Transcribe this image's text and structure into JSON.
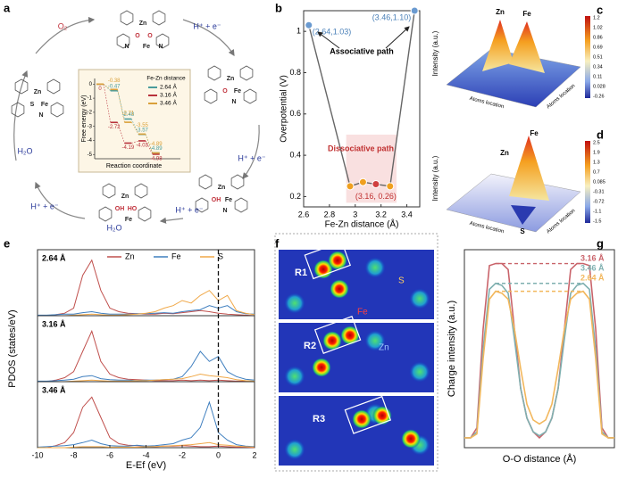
{
  "panel_labels": [
    "a",
    "b",
    "c",
    "d",
    "e",
    "f",
    "g"
  ],
  "panel_a": {
    "reagents": [
      "O₂",
      "H⁺ + e⁻",
      "H⁺ + e⁻",
      "H⁺ + e⁻",
      "H₂O",
      "H⁺ + e⁻",
      "H₂O"
    ],
    "structures": [
      [
        "Zn",
        "O",
        "O",
        "Fe",
        "N",
        "N"
      ],
      [
        "Zn",
        "O",
        "Fe",
        "N"
      ],
      [
        "Zn",
        "OH",
        "Fe",
        "N"
      ],
      [
        "Zn",
        "OH",
        "HO",
        "Fe"
      ],
      [
        "Zn",
        "S",
        "Fe",
        "N"
      ]
    ]
  },
  "panel_c": {
    "zlabel": "Intensity (a.u.)",
    "axis_labels": [
      "Atoms location",
      "Atoms location"
    ],
    "peaks": [
      "Zn",
      "Fe"
    ],
    "colorbar_labels": [
      "1.2",
      "1.02",
      "0.86",
      "0.69",
      "0.51",
      "0.34",
      "0.11",
      "0.028",
      "-0.26"
    ]
  },
  "panel_d": {
    "zlabel": "Intensity (a.u.)",
    "axis_labels": [
      "Atoms location",
      "Atoms location"
    ],
    "peaks": [
      "Zn",
      "Fe",
      "S"
    ],
    "colorbar_labels": [
      "2.5",
      "1.9",
      "1.3",
      "0.7",
      "0.085",
      "-0.31",
      "-0.72",
      "-1.1",
      "-1.5"
    ]
  },
  "panel_e": {
    "ylabel": "PDOS (states/eV)"
  },
  "panel_f": {
    "regions": [
      "R1",
      "R2",
      "R3"
    ],
    "atoms": [
      "S",
      "Fe",
      "Zn"
    ]
  },
  "chart_data": [
    {
      "type": "step",
      "xlabel": "Reaction coordinate",
      "ylabel": "Free energy (eV)",
      "legend_title": "Fe-Zn distance",
      "ylim": [
        -5.3,
        0.4
      ],
      "yticks": [
        0,
        -1,
        -2,
        -3,
        -4,
        -5
      ],
      "series": [
        {
          "name": "2.64 Å",
          "color": "#4a9c9c",
          "values": [
            0,
            -0.47,
            -2.48,
            -3.57,
            -4.89
          ]
        },
        {
          "name": "3.16 Å",
          "color": "#b8323c",
          "values": [
            0,
            -2.72,
            -4.19,
            -4.03,
            -4.98
          ]
        },
        {
          "name": "3.46 Å",
          "color": "#d9a03a",
          "values": [
            0,
            -0.38,
            -2.71,
            -3.55,
            -4.89
          ]
        }
      ]
    },
    {
      "type": "line",
      "xlabel": "Fe-Zn distance (Å)",
      "ylabel": "Overpotential (V)",
      "color": "#666666",
      "x": [
        2.64,
        2.96,
        3.06,
        3.16,
        3.27,
        3.46
      ],
      "values": [
        1.03,
        0.25,
        0.27,
        0.26,
        0.25,
        1.1
      ],
      "value_labels": [
        "(2.64,1.03)",
        null,
        null,
        "(3.16, 0.26)",
        null,
        "(3.46,1.10)"
      ],
      "annotations": [
        "Associative path",
        "Dissociative path"
      ],
      "xlim": [
        2.6,
        3.5
      ],
      "ylim": [
        0.15,
        1.1
      ],
      "xticks": [
        2.6,
        2.8,
        3.0,
        3.2,
        3.4
      ],
      "yticks": [
        0.2,
        0.4,
        0.6,
        0.8,
        1.0
      ]
    },
    {
      "type": "line",
      "title": "2.64 Å",
      "xlim": [
        -10,
        2
      ],
      "ylim": [
        0,
        12
      ],
      "x": [
        -10,
        -9.5,
        -9,
        -8.5,
        -8,
        -7.5,
        -7,
        -6.5,
        -6,
        -5.5,
        -5,
        -4.5,
        -4,
        -3.5,
        -3,
        -2.5,
        -2,
        -1.5,
        -1,
        -0.5,
        0,
        0.5,
        1,
        1.5,
        2
      ],
      "series": [
        {
          "name": "Zn",
          "color": "#c0504d",
          "values": [
            0,
            0,
            0.2,
            0.5,
            1.5,
            8,
            11,
            5,
            1.5,
            0.8,
            0.5,
            0.4,
            0.3,
            0.3,
            0.5,
            0.4,
            0.6,
            0.8,
            1,
            0.8,
            0.5,
            0.3,
            0.2,
            0.1,
            0
          ]
        },
        {
          "name": "Fe",
          "color": "#3f7fbf",
          "values": [
            0.1,
            0.1,
            0.2,
            0.3,
            0.3,
            0.6,
            0.8,
            0.5,
            0.3,
            0.3,
            0.3,
            0.4,
            0.4,
            0.5,
            0.6,
            0.5,
            0.8,
            1,
            1.2,
            2,
            1.5,
            2,
            0.8,
            0.4,
            0.3
          ]
        },
        {
          "name": "S",
          "color": "#f0a848",
          "values": [
            0,
            0,
            0,
            0,
            0.1,
            0.2,
            0.3,
            0.2,
            0.1,
            0.1,
            0.2,
            0.3,
            0.5,
            0.8,
            1.5,
            2,
            3,
            2.5,
            4,
            5,
            3,
            4,
            1,
            0.5,
            0.2
          ]
        }
      ]
    },
    {
      "type": "line",
      "title": "3.16 Å",
      "xlim": [
        -10,
        2
      ],
      "ylim": [
        0,
        12
      ],
      "x": [
        -10,
        -9.5,
        -9,
        -8.5,
        -8,
        -7.5,
        -7,
        -6.5,
        -6,
        -5.5,
        -5,
        -4.5,
        -4,
        -3.5,
        -3,
        -2.5,
        -2,
        -1.5,
        -1,
        -0.5,
        0,
        0.5,
        1,
        1.5,
        2
      ],
      "series": [
        {
          "color": "#c0504d",
          "values": [
            0,
            0,
            0.3,
            0.8,
            2,
            6,
            10,
            4,
            1.5,
            0.8,
            0.5,
            0.4,
            0.3,
            0.2,
            0.2,
            0.2,
            0.3,
            0.2,
            0.3,
            0.2,
            0.3,
            0.2,
            0.1,
            0.1,
            0
          ]
        },
        {
          "color": "#3f7fbf",
          "values": [
            0.1,
            0.1,
            0.2,
            0.3,
            0.5,
            1,
            1.2,
            0.6,
            0.4,
            0.3,
            0.3,
            0.2,
            0.3,
            0.3,
            0.4,
            0.5,
            1,
            3,
            6,
            4,
            5,
            2,
            1,
            0.5,
            0.3
          ]
        },
        {
          "color": "#f0a848",
          "values": [
            0,
            0,
            0,
            0,
            0.1,
            0.2,
            0.3,
            0.2,
            0.1,
            0.1,
            0.1,
            0.2,
            0.2,
            0.3,
            0.4,
            0.5,
            0.6,
            1,
            1.5,
            1.2,
            1,
            0.8,
            0.4,
            0.2,
            0.1
          ]
        }
      ]
    },
    {
      "type": "line",
      "title": "3.46 Å",
      "xlabel": "E-Ef (eV)",
      "xlim": [
        -10,
        2
      ],
      "ylim": [
        0,
        12
      ],
      "xticks": [
        -10,
        -8,
        -6,
        -4,
        -2,
        0,
        2
      ],
      "x": [
        -10,
        -9.5,
        -9,
        -8.5,
        -8,
        -7.5,
        -7,
        -6.5,
        -6,
        -5.5,
        -5,
        -4.5,
        -4,
        -3.5,
        -3,
        -2.5,
        -2,
        -1.5,
        -1,
        -0.5,
        0,
        0.5,
        1,
        1.5,
        2
      ],
      "series": [
        {
          "color": "#c0504d",
          "values": [
            0,
            0,
            0.4,
            1,
            3,
            8,
            10,
            6,
            2,
            0.8,
            0.5,
            0.4,
            0.3,
            0.2,
            0.3,
            0.3,
            0.4,
            0.3,
            0.2,
            0.2,
            0.3,
            0.2,
            0.1,
            0.1,
            0
          ]
        },
        {
          "color": "#3f7fbf",
          "values": [
            0.1,
            0.2,
            0.3,
            0.4,
            0.6,
            1,
            1.5,
            0.8,
            0.4,
            0.3,
            0.3,
            0.5,
            0.3,
            0.4,
            0.6,
            0.8,
            1.5,
            2,
            4,
            9,
            3,
            1.5,
            0.6,
            0.3,
            0.2
          ]
        },
        {
          "color": "#f0a848",
          "values": [
            0,
            0,
            0,
            0,
            0.1,
            0.2,
            0.2,
            0.2,
            0.1,
            0.1,
            0.1,
            0.1,
            0.2,
            0.2,
            0.3,
            0.4,
            0.5,
            0.6,
            0.8,
            1,
            0.6,
            0.5,
            0.3,
            0.2,
            0.1
          ]
        }
      ]
    },
    {
      "type": "line",
      "xlabel": "O-O distance (Å)",
      "ylabel": "Charge intensity (a.u.)",
      "xlim": [
        0,
        24
      ],
      "ylim": [
        0,
        1
      ],
      "x": [
        0,
        1,
        2,
        3,
        4,
        5,
        6,
        7,
        8,
        9,
        10,
        11,
        12,
        13,
        14,
        15,
        16,
        17,
        18,
        19,
        20,
        21,
        22,
        23,
        24
      ],
      "series": [
        {
          "name": "3.16 Å",
          "color": "#c9636a",
          "values": [
            0.05,
            0.05,
            0.1,
            0.6,
            0.92,
            0.93,
            0.93,
            0.9,
            0.6,
            0.3,
            0.15,
            0.08,
            0.05,
            0.08,
            0.15,
            0.3,
            0.6,
            0.9,
            0.93,
            0.93,
            0.92,
            0.6,
            0.1,
            0.05,
            0.05
          ]
        },
        {
          "name": "3.46 Å",
          "color": "#7fb0b0",
          "values": [
            0.05,
            0.05,
            0.08,
            0.5,
            0.8,
            0.83,
            0.82,
            0.78,
            0.55,
            0.3,
            0.15,
            0.08,
            0.06,
            0.08,
            0.15,
            0.3,
            0.55,
            0.78,
            0.82,
            0.83,
            0.8,
            0.5,
            0.08,
            0.05,
            0.05
          ]
        },
        {
          "name": "2.64 Å",
          "color": "#f2b75c",
          "values": [
            0.05,
            0.05,
            0.07,
            0.45,
            0.75,
            0.79,
            0.78,
            0.75,
            0.6,
            0.4,
            0.22,
            0.14,
            0.12,
            0.14,
            0.22,
            0.4,
            0.6,
            0.75,
            0.78,
            0.79,
            0.75,
            0.45,
            0.07,
            0.05,
            0.05
          ]
        }
      ]
    }
  ]
}
